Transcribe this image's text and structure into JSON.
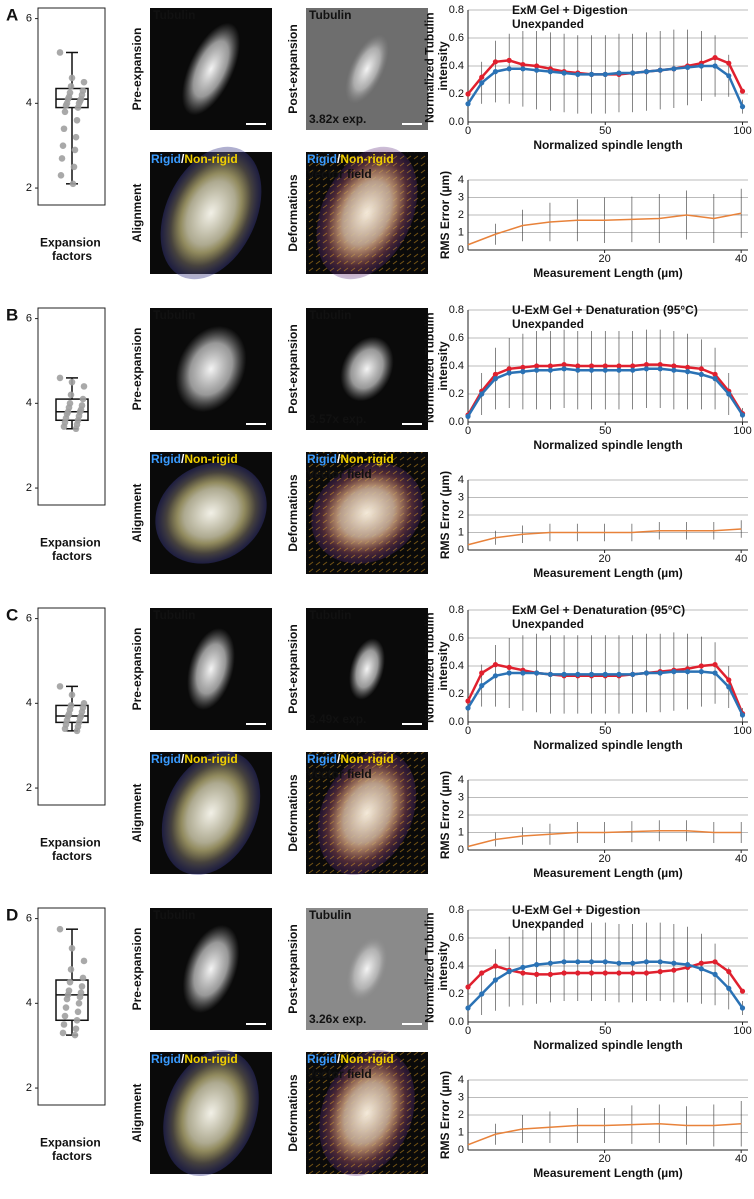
{
  "panels": [
    {
      "label": "A",
      "pre": {
        "side": "Pre-expansion",
        "tag": "Tubulin"
      },
      "post": {
        "side": "Post-expansion",
        "tag": "Tubulin",
        "factor": "3.82x exp."
      },
      "alignment": {
        "side": "Alignment",
        "rigid": "Rigid",
        "sep": "/",
        "nonrigid": "Non-rigid"
      },
      "deformations": {
        "side": "Deformations",
        "rigid": "Rigid",
        "sep": "/",
        "nonrigid": "Non-rigid",
        "vector": "Vector field"
      }
    },
    {
      "label": "B",
      "pre": {
        "side": "Pre-expansion",
        "tag": "Tubulin"
      },
      "post": {
        "side": "Post-expansion",
        "tag": "Tubulin",
        "factor": "3.57x exp."
      },
      "alignment": {
        "side": "Alignment",
        "rigid": "Rigid",
        "sep": "/",
        "nonrigid": "Non-rigid"
      },
      "deformations": {
        "side": "Deformations",
        "rigid": "Rigid",
        "sep": "/",
        "nonrigid": "Non-rigid",
        "vector": "Vector field"
      }
    },
    {
      "label": "C",
      "pre": {
        "side": "Pre-expansion",
        "tag": "Tubulin"
      },
      "post": {
        "side": "Post-expansion",
        "tag": "Tubulin",
        "factor": "3.49x exp."
      },
      "alignment": {
        "side": "Alignment",
        "rigid": "Rigid",
        "sep": "/",
        "nonrigid": "Non-rigid"
      },
      "deformations": {
        "side": "Deformations",
        "rigid": "Rigid",
        "sep": "/",
        "nonrigid": "Non-rigid",
        "vector": "Vector field"
      }
    },
    {
      "label": "D",
      "pre": {
        "side": "Pre-expansion",
        "tag": "Tubulin"
      },
      "post": {
        "side": "Post-expansion",
        "tag": "Tubulin",
        "factor": "3.26x exp."
      },
      "alignment": {
        "side": "Alignment",
        "rigid": "Rigid",
        "sep": "/",
        "nonrigid": "Non-rigid"
      },
      "deformations": {
        "side": "Deformations",
        "rigid": "Rigid",
        "sep": "/",
        "nonrigid": "Non-rigid",
        "vector": "Vector field"
      }
    }
  ],
  "chart_data": [
    {
      "type": "box",
      "xlabel": "Expansion factors",
      "ylim": [
        1.6,
        6.25
      ],
      "yticks": [
        2,
        4,
        6
      ],
      "whisker_low": 2.1,
      "q1": 3.9,
      "median": 4.1,
      "q3": 4.35,
      "whisker_high": 5.2,
      "color": "#a0a0a0",
      "points": [
        5.2,
        4.6,
        4.5,
        4.4,
        4.3,
        4.25,
        4.2,
        4.15,
        4.1,
        4.1,
        4.05,
        4.0,
        4.0,
        3.95,
        3.9,
        3.8,
        3.6,
        3.4,
        3.2,
        3.0,
        2.9,
        2.7,
        2.5,
        2.3,
        2.1
      ]
    },
    {
      "type": "line",
      "ylabel": "Normalized Tubulin intensity",
      "xlabel": "Normalized spindle length",
      "x": [
        0,
        5,
        10,
        15,
        20,
        25,
        30,
        35,
        40,
        45,
        50,
        55,
        60,
        65,
        70,
        75,
        80,
        85,
        90,
        95,
        100
      ],
      "xlim": [
        0,
        102
      ],
      "xticks": [
        0,
        50,
        100
      ],
      "ylim": [
        0,
        0.8
      ],
      "yticks": [
        {
          "value": 0,
          "label": "0.0"
        },
        0.2,
        0.4,
        0.6,
        0.8
      ],
      "grid": true,
      "series": [
        {
          "name": "ExM Gel + Digestion",
          "color": "#e0202e",
          "values": [
            0.2,
            0.32,
            0.43,
            0.44,
            0.41,
            0.4,
            0.38,
            0.36,
            0.35,
            0.34,
            0.34,
            0.34,
            0.35,
            0.36,
            0.37,
            0.38,
            0.4,
            0.42,
            0.46,
            0.42,
            0.22
          ]
        },
        {
          "name": "Unexpanded",
          "color": "#2a72b5",
          "values": [
            0.13,
            0.28,
            0.36,
            0.38,
            0.38,
            0.37,
            0.36,
            0.35,
            0.34,
            0.34,
            0.34,
            0.35,
            0.35,
            0.36,
            0.37,
            0.38,
            0.39,
            0.4,
            0.4,
            0.33,
            0.11
          ],
          "errors": [
            0.05,
            0.15,
            0.22,
            0.25,
            0.27,
            0.28,
            0.28,
            0.28,
            0.28,
            0.28,
            0.28,
            0.28,
            0.28,
            0.28,
            0.28,
            0.28,
            0.27,
            0.25,
            0.22,
            0.15,
            0.05
          ]
        }
      ]
    },
    {
      "type": "line",
      "ylabel": "RMS Error (µm)",
      "xlabel": "Measurement Length (µm)",
      "x": [
        0,
        4,
        8,
        12,
        16,
        20,
        24,
        28,
        32,
        36,
        40
      ],
      "xlim": [
        0,
        41
      ],
      "xticks": [
        20,
        40
      ],
      "ylim": [
        0,
        4
      ],
      "yticks": [
        0,
        1,
        2,
        3,
        4
      ],
      "grid": true,
      "series": [
        {
          "color": "#e8823a",
          "values": [
            0.3,
            0.9,
            1.4,
            1.6,
            1.7,
            1.7,
            1.75,
            1.8,
            2.0,
            1.8,
            2.1
          ],
          "errors": [
            0.3,
            0.6,
            0.9,
            1.1,
            1.2,
            1.3,
            1.3,
            1.4,
            1.4,
            1.4,
            1.4
          ]
        }
      ]
    },
    {
      "type": "box",
      "xlabel": "Expansion factors",
      "ylim": [
        1.6,
        6.25
      ],
      "yticks": [
        2,
        4,
        6
      ],
      "whisker_low": 3.4,
      "q1": 3.6,
      "median": 3.8,
      "q3": 4.1,
      "whisker_high": 4.6,
      "color": "#a0a0a0",
      "points": [
        4.6,
        4.5,
        4.4,
        4.2,
        4.1,
        4.0,
        3.95,
        3.9,
        3.85,
        3.8,
        3.8,
        3.75,
        3.7,
        3.65,
        3.6,
        3.55,
        3.5,
        3.45,
        3.4
      ]
    },
    {
      "type": "line",
      "ylabel": "Normalized Tubulin intensity",
      "xlabel": "Normalized spindle length",
      "x": [
        0,
        5,
        10,
        15,
        20,
        25,
        30,
        35,
        40,
        45,
        50,
        55,
        60,
        65,
        70,
        75,
        80,
        85,
        90,
        95,
        100
      ],
      "xlim": [
        0,
        102
      ],
      "xticks": [
        0,
        50,
        100
      ],
      "ylim": [
        0,
        0.8
      ],
      "yticks": [
        {
          "value": 0,
          "label": "0.0"
        },
        0.2,
        0.4,
        0.6,
        0.8
      ],
      "grid": true,
      "series": [
        {
          "name": "U-ExM Gel + Denaturation (95°C)",
          "color": "#e0202e",
          "values": [
            0.05,
            0.22,
            0.34,
            0.38,
            0.39,
            0.4,
            0.4,
            0.41,
            0.4,
            0.4,
            0.4,
            0.4,
            0.4,
            0.41,
            0.41,
            0.4,
            0.39,
            0.38,
            0.34,
            0.22,
            0.06
          ]
        },
        {
          "name": "Unexpanded",
          "color": "#2a72b5",
          "values": [
            0.04,
            0.2,
            0.31,
            0.35,
            0.36,
            0.37,
            0.37,
            0.38,
            0.37,
            0.37,
            0.37,
            0.37,
            0.37,
            0.38,
            0.38,
            0.37,
            0.36,
            0.34,
            0.31,
            0.2,
            0.05
          ],
          "errors": [
            0.05,
            0.15,
            0.22,
            0.25,
            0.27,
            0.28,
            0.28,
            0.28,
            0.28,
            0.28,
            0.28,
            0.28,
            0.28,
            0.28,
            0.28,
            0.28,
            0.27,
            0.25,
            0.22,
            0.15,
            0.05
          ]
        }
      ]
    },
    {
      "type": "line",
      "ylabel": "RMS Error (µm)",
      "xlabel": "Measurement Length (µm)",
      "x": [
        0,
        4,
        8,
        12,
        16,
        20,
        24,
        28,
        32,
        36,
        40
      ],
      "xlim": [
        0,
        41
      ],
      "xticks": [
        20,
        40
      ],
      "ylim": [
        0,
        4
      ],
      "yticks": [
        0,
        1,
        2,
        3,
        4
      ],
      "grid": true,
      "series": [
        {
          "color": "#e8823a",
          "values": [
            0.3,
            0.7,
            0.9,
            1.0,
            1.0,
            1.0,
            1.0,
            1.1,
            1.1,
            1.1,
            1.2
          ],
          "errors": [
            0.2,
            0.4,
            0.5,
            0.5,
            0.5,
            0.5,
            0.5,
            0.5,
            0.5,
            0.5,
            0.5
          ]
        }
      ]
    },
    {
      "type": "box",
      "xlabel": "Expansion factors",
      "ylim": [
        1.6,
        6.25
      ],
      "yticks": [
        2,
        4,
        6
      ],
      "whisker_low": 3.35,
      "q1": 3.55,
      "median": 3.7,
      "q3": 3.95,
      "whisker_high": 4.4,
      "color": "#a0a0a0",
      "points": [
        4.4,
        4.2,
        4.0,
        3.95,
        3.9,
        3.85,
        3.8,
        3.75,
        3.7,
        3.7,
        3.65,
        3.6,
        3.55,
        3.5,
        3.45,
        3.4,
        3.35
      ]
    },
    {
      "type": "line",
      "ylabel": "Normalized Tubulin intensity",
      "xlabel": "Normalized spindle length",
      "x": [
        0,
        5,
        10,
        15,
        20,
        25,
        30,
        35,
        40,
        45,
        50,
        55,
        60,
        65,
        70,
        75,
        80,
        85,
        90,
        95,
        100
      ],
      "xlim": [
        0,
        102
      ],
      "xticks": [
        0,
        50,
        100
      ],
      "ylim": [
        0,
        0.8
      ],
      "yticks": [
        {
          "value": 0,
          "label": "0.0"
        },
        0.2,
        0.4,
        0.6,
        0.8
      ],
      "grid": true,
      "series": [
        {
          "name": "ExM Gel + Denaturation (95°C)",
          "color": "#e0202e",
          "values": [
            0.15,
            0.35,
            0.41,
            0.39,
            0.37,
            0.35,
            0.34,
            0.33,
            0.33,
            0.33,
            0.33,
            0.33,
            0.34,
            0.35,
            0.36,
            0.37,
            0.38,
            0.4,
            0.41,
            0.3,
            0.06
          ]
        },
        {
          "name": "Unexpanded",
          "color": "#2a72b5",
          "values": [
            0.1,
            0.26,
            0.33,
            0.35,
            0.35,
            0.35,
            0.34,
            0.34,
            0.34,
            0.34,
            0.34,
            0.34,
            0.34,
            0.35,
            0.35,
            0.36,
            0.36,
            0.36,
            0.35,
            0.25,
            0.05
          ],
          "errors": [
            0.05,
            0.15,
            0.22,
            0.25,
            0.27,
            0.28,
            0.28,
            0.28,
            0.28,
            0.28,
            0.28,
            0.28,
            0.28,
            0.28,
            0.28,
            0.28,
            0.27,
            0.25,
            0.22,
            0.15,
            0.05
          ]
        }
      ]
    },
    {
      "type": "line",
      "ylabel": "RMS Error (µm)",
      "xlabel": "Measurement Length (µm)",
      "x": [
        0,
        4,
        8,
        12,
        16,
        20,
        24,
        28,
        32,
        36,
        40
      ],
      "xlim": [
        0,
        41
      ],
      "xticks": [
        20,
        40
      ],
      "ylim": [
        0,
        4
      ],
      "yticks": [
        0,
        1,
        2,
        3,
        4
      ],
      "grid": true,
      "series": [
        {
          "color": "#e8823a",
          "values": [
            0.2,
            0.6,
            0.8,
            0.9,
            1.0,
            1.0,
            1.05,
            1.1,
            1.1,
            1.0,
            1.0
          ],
          "errors": [
            0.2,
            0.4,
            0.5,
            0.6,
            0.6,
            0.6,
            0.6,
            0.6,
            0.6,
            0.6,
            0.6
          ]
        }
      ]
    },
    {
      "type": "box",
      "xlabel": "Expansion factors",
      "ylim": [
        1.6,
        6.25
      ],
      "yticks": [
        2,
        4,
        6
      ],
      "whisker_low": 3.25,
      "q1": 3.6,
      "median": 4.2,
      "q3": 4.55,
      "whisker_high": 5.75,
      "color": "#a0a0a0",
      "points": [
        5.75,
        5.3,
        5.0,
        4.8,
        4.6,
        4.5,
        4.4,
        4.3,
        4.25,
        4.2,
        4.15,
        4.1,
        4.0,
        3.9,
        3.8,
        3.7,
        3.6,
        3.5,
        3.4,
        3.3,
        3.25
      ]
    },
    {
      "type": "line",
      "ylabel": "Normalized Tubulin intensity",
      "xlabel": "Normalized spindle length",
      "x": [
        0,
        5,
        10,
        15,
        20,
        25,
        30,
        35,
        40,
        45,
        50,
        55,
        60,
        65,
        70,
        75,
        80,
        85,
        90,
        95,
        100
      ],
      "xlim": [
        0,
        102
      ],
      "xticks": [
        0,
        50,
        100
      ],
      "ylim": [
        0,
        0.8
      ],
      "yticks": [
        {
          "value": 0,
          "label": "0.0"
        },
        0.2,
        0.4,
        0.6,
        0.8
      ],
      "grid": true,
      "series": [
        {
          "name": "U-ExM Gel + Digestion",
          "color": "#e0202e",
          "values": [
            0.25,
            0.35,
            0.4,
            0.37,
            0.35,
            0.34,
            0.34,
            0.35,
            0.35,
            0.35,
            0.35,
            0.35,
            0.35,
            0.35,
            0.36,
            0.37,
            0.39,
            0.42,
            0.43,
            0.36,
            0.22
          ]
        },
        {
          "name": "Unexpanded",
          "color": "#2a72b5",
          "values": [
            0.1,
            0.2,
            0.3,
            0.36,
            0.39,
            0.41,
            0.42,
            0.43,
            0.43,
            0.43,
            0.43,
            0.42,
            0.42,
            0.43,
            0.43,
            0.42,
            0.41,
            0.38,
            0.34,
            0.24,
            0.1
          ],
          "errors": [
            0.05,
            0.15,
            0.22,
            0.25,
            0.27,
            0.28,
            0.28,
            0.28,
            0.28,
            0.28,
            0.28,
            0.28,
            0.28,
            0.28,
            0.28,
            0.28,
            0.27,
            0.25,
            0.22,
            0.15,
            0.05
          ]
        }
      ]
    },
    {
      "type": "line",
      "ylabel": "RMS Error (µm)",
      "xlabel": "Measurement Length (µm)",
      "x": [
        0,
        4,
        8,
        12,
        16,
        20,
        24,
        28,
        32,
        36,
        40
      ],
      "xlim": [
        0,
        41
      ],
      "xticks": [
        20,
        40
      ],
      "ylim": [
        0,
        4
      ],
      "yticks": [
        0,
        1,
        2,
        3,
        4
      ],
      "grid": true,
      "series": [
        {
          "color": "#e8823a",
          "values": [
            0.3,
            0.9,
            1.2,
            1.3,
            1.4,
            1.4,
            1.45,
            1.5,
            1.4,
            1.4,
            1.5
          ],
          "errors": [
            0.3,
            0.6,
            0.8,
            0.9,
            1.0,
            1.0,
            1.1,
            1.1,
            1.1,
            1.2,
            1.3
          ]
        }
      ]
    }
  ]
}
